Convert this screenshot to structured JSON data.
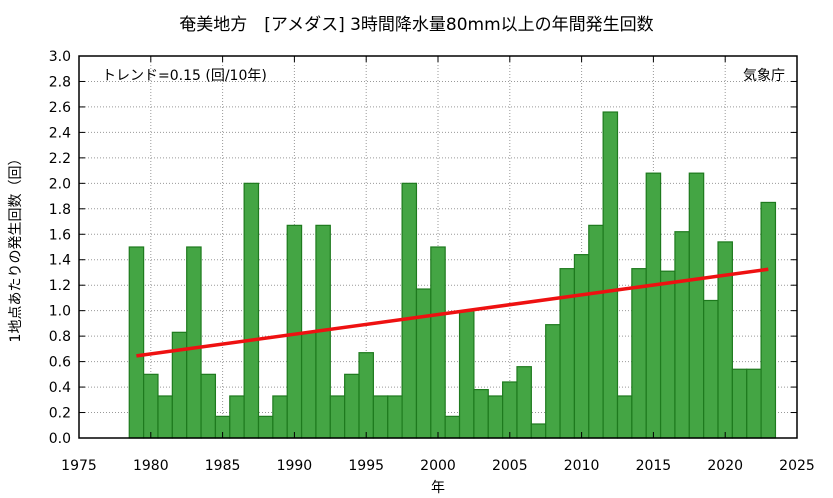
{
  "chart_data": {
    "type": "bar",
    "title": "奄美地方　[アメダス] 3時間降水量80mm以上の年間発生回数",
    "xlabel": "年",
    "ylabel": "1地点あたりの発生回数（回）",
    "xlim": [
      1975,
      2025
    ],
    "ylim": [
      0,
      3.0
    ],
    "x_ticks": [
      "1975",
      "1980",
      "1985",
      "1990",
      "1995",
      "2000",
      "2005",
      "2010",
      "2015",
      "2020",
      "2025"
    ],
    "y_ticks": [
      "0.0",
      "0.2",
      "0.4",
      "0.6",
      "0.8",
      "1.0",
      "1.2",
      "1.4",
      "1.6",
      "1.8",
      "2.0",
      "2.2",
      "2.4",
      "2.6",
      "2.8",
      "3.0"
    ],
    "grid": true,
    "trend_label": "トレンド=0.15 (回/10年)",
    "source_label": "気象庁",
    "bar_color": "#44a544",
    "bar_edge_color": "#1e7a1e",
    "trend_color": "#ee1111",
    "x": [
      1979,
      1980,
      1981,
      1982,
      1983,
      1984,
      1985,
      1986,
      1987,
      1988,
      1989,
      1990,
      1991,
      1992,
      1993,
      1994,
      1995,
      1996,
      1997,
      1998,
      1999,
      2000,
      2001,
      2002,
      2003,
      2004,
      2005,
      2006,
      2007,
      2008,
      2009,
      2010,
      2011,
      2012,
      2013,
      2014,
      2015,
      2016,
      2017,
      2018,
      2019,
      2020,
      2021,
      2022,
      2023
    ],
    "values": [
      1.5,
      0.5,
      0.33,
      0.83,
      1.5,
      0.5,
      0.17,
      0.33,
      2.0,
      0.17,
      0.33,
      1.67,
      0.83,
      1.67,
      0.33,
      0.5,
      0.67,
      0.33,
      0.33,
      2.0,
      1.17,
      1.5,
      0.17,
      1.0,
      0.38,
      0.33,
      0.44,
      0.56,
      0.11,
      0.89,
      1.33,
      1.44,
      1.67,
      2.56,
      0.33,
      1.33,
      2.08,
      1.31,
      1.62,
      2.08,
      1.08,
      1.54,
      0.54,
      0.54,
      1.85
    ],
    "trend": {
      "x": [
        1979,
        2023
      ],
      "y": [
        0.645,
        1.325
      ]
    }
  }
}
